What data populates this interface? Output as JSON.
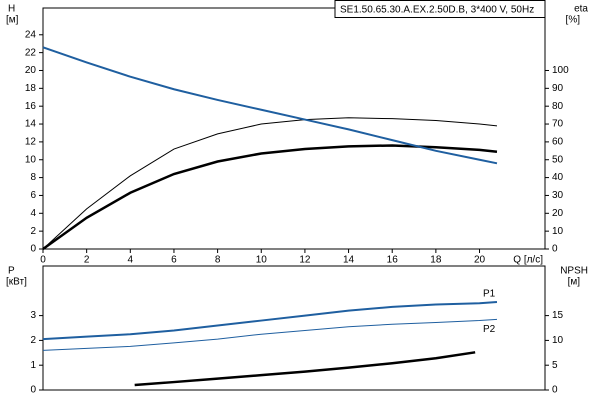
{
  "chart_data": [
    {
      "type": "line",
      "title": "SE1.50.65.30.A.EX.2.50D.B, 3*400 V, 50Hz",
      "ylabel": "H",
      "yunit": "[м]",
      "y2label": "eta",
      "y2unit": "[%]",
      "xlabel": "Q [л/с]",
      "xlim": [
        0,
        23
      ],
      "xticks": [
        0,
        2,
        4,
        6,
        8,
        10,
        12,
        14,
        16,
        18,
        20
      ],
      "ylim": [
        0,
        27
      ],
      "yticks": [
        0,
        2,
        4,
        6,
        8,
        10,
        12,
        14,
        16,
        18,
        20,
        22,
        24
      ],
      "y2lim": [
        0,
        135
      ],
      "y2ticks": [
        0,
        10,
        20,
        30,
        40,
        50,
        60,
        70,
        80,
        90,
        100
      ],
      "x": [
        0,
        2,
        4,
        6,
        8,
        10,
        12,
        14,
        16,
        18,
        20,
        20.8
      ],
      "series": [
        {
          "color": "#000000",
          "line_width": 2.5,
          "values": [
            0,
            3.5,
            6.3,
            8.4,
            9.8,
            10.7,
            11.2,
            11.5,
            11.6,
            11.4,
            11.1,
            10.9
          ]
        },
        {
          "color": "#000000",
          "line_width": 1,
          "axis": "y2",
          "values": [
            0,
            22.5,
            41,
            56,
            64.5,
            70,
            72.5,
            73.5,
            73,
            72,
            70,
            69
          ]
        },
        {
          "color": "#1f5fa0",
          "line_width": 2,
          "values": [
            22.6,
            20.9,
            19.3,
            17.9,
            16.7,
            15.6,
            14.5,
            13.4,
            12.2,
            11,
            10,
            9.6
          ]
        }
      ]
    },
    {
      "type": "line",
      "ylabel": "P",
      "yunit": "[кВт]",
      "y2label": "NPSH",
      "y2unit": "[м]",
      "xlim": [
        0,
        23
      ],
      "ylim": [
        0,
        5
      ],
      "yticks": [
        0,
        1,
        2,
        3
      ],
      "y2lim": [
        0,
        25
      ],
      "y2ticks": [
        0,
        5,
        10,
        15
      ],
      "x": [
        0,
        2,
        4,
        6,
        8,
        10,
        12,
        14,
        16,
        18,
        20,
        20.8
      ],
      "series": [
        {
          "name": "P1",
          "color": "#1f5fa0",
          "line_width": 2,
          "values": [
            2.05,
            2.15,
            2.25,
            2.4,
            2.6,
            2.8,
            3.0,
            3.2,
            3.35,
            3.45,
            3.5,
            3.55
          ]
        },
        {
          "name": "P2",
          "color": "#1f5fa0",
          "line_width": 1,
          "values": [
            1.6,
            1.68,
            1.76,
            1.9,
            2.05,
            2.25,
            2.4,
            2.55,
            2.65,
            2.72,
            2.8,
            2.85
          ]
        },
        {
          "color": "#000000",
          "line_width": 2.5,
          "axis": "y2",
          "x": [
            4.2,
            6,
            8,
            10,
            12,
            14,
            16,
            18,
            19.8
          ],
          "values": [
            1.0,
            1.6,
            2.3,
            3.0,
            3.7,
            4.5,
            5.4,
            6.4,
            7.6
          ]
        }
      ]
    }
  ]
}
